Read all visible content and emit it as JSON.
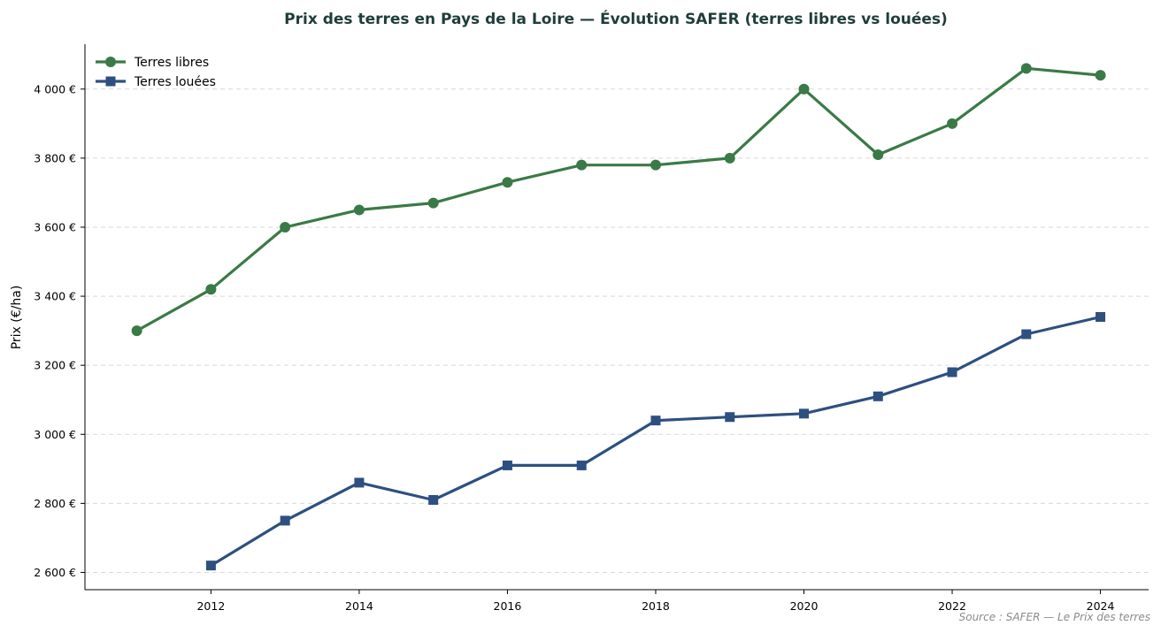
{
  "colors": {
    "title": "#1f3d3a",
    "grid": "#d9d9d9",
    "source": "#8a8a8a"
  },
  "chart_data": {
    "type": "line",
    "title": "Prix des terres en Pays de la Loire — Évolution SAFER (terres libres vs louées)",
    "xlabel": "",
    "ylabel": "Prix (€/ha)",
    "xlim": [
      2010.3,
      2024.65
    ],
    "ylim": [
      2550,
      4130
    ],
    "x_ticks": [
      2012,
      2014,
      2016,
      2018,
      2020,
      2022,
      2024
    ],
    "y_ticks": [
      2600,
      2800,
      3000,
      3200,
      3400,
      3600,
      3800,
      4000
    ],
    "y_tick_labels": [
      "2 600 €",
      "2 800 €",
      "3 000 €",
      "3 200 €",
      "3 400 €",
      "3 600 €",
      "3 800 €",
      "4 000 €"
    ],
    "grid": "y-dashed",
    "legend_position": "top-left",
    "series": [
      {
        "name": "Terres libres",
        "color": "#3a7a46",
        "marker": "circle",
        "x": [
          2011,
          2012,
          2013,
          2014,
          2015,
          2016,
          2017,
          2018,
          2019,
          2020,
          2021,
          2022,
          2023,
          2024
        ],
        "values": [
          3300,
          3420,
          3600,
          3650,
          3670,
          3730,
          3780,
          3780,
          3800,
          4000,
          3810,
          3900,
          4060,
          4040
        ]
      },
      {
        "name": "Terres louées",
        "color": "#2d5080",
        "marker": "square",
        "x": [
          2012,
          2013,
          2014,
          2015,
          2016,
          2017,
          2018,
          2019,
          2020,
          2021,
          2022,
          2023,
          2024
        ],
        "values": [
          2620,
          2750,
          2860,
          2810,
          2910,
          2910,
          3040,
          3050,
          3060,
          3110,
          3180,
          3290,
          3340
        ]
      }
    ],
    "source": "Source : SAFER — Le Prix des terres"
  }
}
